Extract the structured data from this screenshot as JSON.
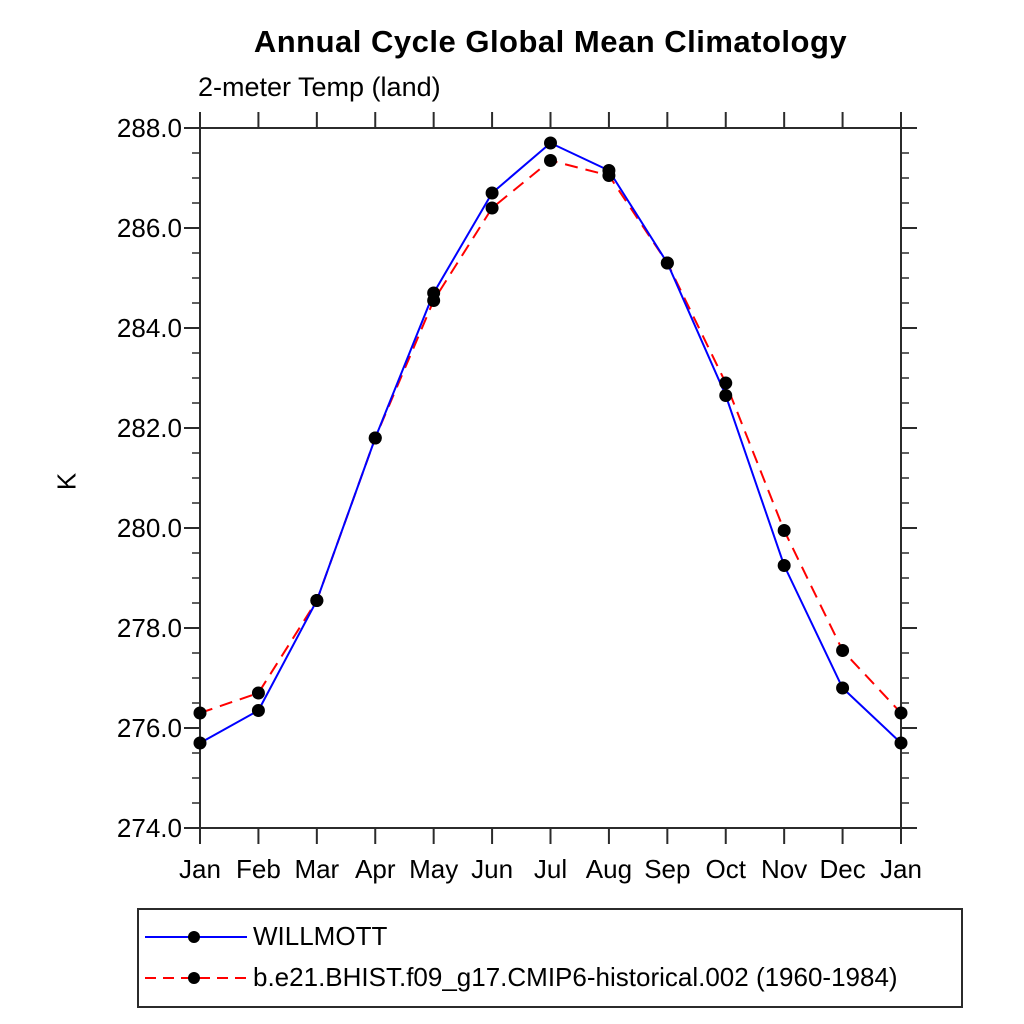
{
  "chart_data": {
    "type": "line",
    "title": "Annual Cycle Global Mean Climatology",
    "subtitle": "2-meter Temp (land)",
    "ylabel": "K",
    "xlabel": "",
    "categories": [
      "Jan",
      "Feb",
      "Mar",
      "Apr",
      "May",
      "Jun",
      "Jul",
      "Aug",
      "Sep",
      "Oct",
      "Nov",
      "Dec",
      "Jan"
    ],
    "ylim": [
      274.0,
      288.0
    ],
    "ytick_step": 2.0,
    "yminor_step": 0.5,
    "ytick_labels": [
      "274.0",
      "276.0",
      "278.0",
      "280.0",
      "282.0",
      "284.0",
      "286.0",
      "288.0"
    ],
    "grid": false,
    "legend_position": "bottom-left",
    "series": [
      {
        "name": "WILLMOTT",
        "color": "#0000ff",
        "line_style": "solid",
        "marker": "filled-circle",
        "marker_color": "#000000",
        "values": [
          275.7,
          276.35,
          278.55,
          281.8,
          284.7,
          286.7,
          287.7,
          287.15,
          285.3,
          282.65,
          279.25,
          276.8,
          275.7
        ]
      },
      {
        "name": "b.e21.BHIST.f09_g17.CMIP6-historical.002 (1960-1984)",
        "color": "#ff0000",
        "line_style": "dashed",
        "marker": "filled-circle",
        "marker_color": "#000000",
        "values": [
          276.3,
          276.7,
          278.55,
          281.8,
          284.55,
          286.4,
          287.35,
          287.05,
          285.3,
          282.9,
          279.95,
          277.55,
          276.3
        ]
      }
    ]
  },
  "colors": {
    "axis": "#2b2b2b",
    "background": "#ffffff",
    "series_willmott": "#0000ff",
    "series_model": "#ff0000",
    "marker": "#000000"
  }
}
